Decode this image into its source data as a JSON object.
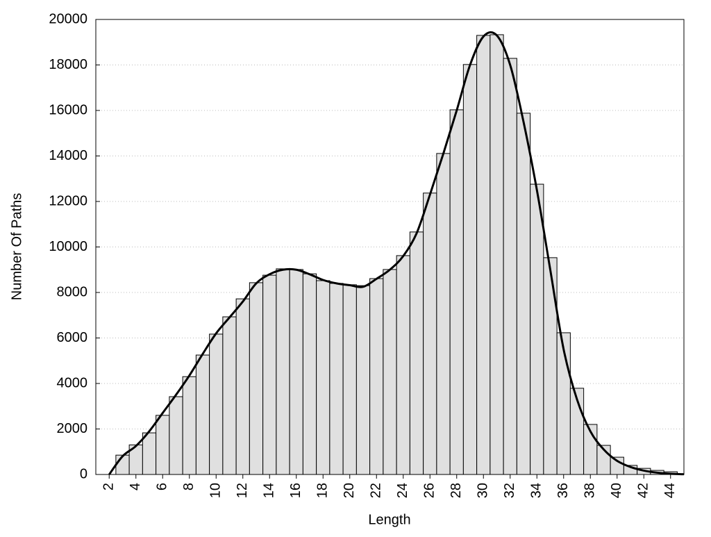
{
  "chart_data": {
    "type": "histogram",
    "x_label": "Length",
    "y_label": "Number Of Paths",
    "bins": [
      2.5,
      3.5,
      4.5,
      5.5,
      6.5,
      7.5,
      8.5,
      9.5,
      10.5,
      11.5,
      12.5,
      13.5,
      14.5,
      15.5,
      16.5,
      17.5,
      18.5,
      19.5,
      20.5,
      21.5,
      22.5,
      23.5,
      24.5,
      25.5,
      26.5,
      27.5,
      28.5,
      29.5,
      30.5,
      31.5,
      32.5,
      33.5,
      34.5,
      35.5,
      36.5,
      37.5,
      38.5,
      39.5,
      40.5,
      41.5,
      42.5,
      43.5,
      44.5
    ],
    "values": [
      850,
      1300,
      1830,
      2600,
      3420,
      4300,
      5250,
      6170,
      6930,
      7720,
      8430,
      8760,
      9040,
      9010,
      8820,
      8520,
      8400,
      8340,
      8300,
      8610,
      9010,
      9620,
      10660,
      12370,
      14110,
      16030,
      18020,
      19300,
      19330,
      18290,
      15880,
      12760,
      9530,
      6230,
      3790,
      2200,
      1280,
      760,
      400,
      270,
      180,
      120
    ],
    "bar_color": "#e0e0e0",
    "curve": {
      "color": "#000000",
      "x": [
        2,
        3,
        4,
        5,
        6,
        7,
        8,
        9,
        10,
        11,
        12,
        13,
        14,
        15,
        16,
        17,
        18,
        19,
        20,
        21,
        22,
        23,
        24,
        25,
        26,
        27,
        28,
        29,
        30,
        31,
        32,
        33,
        34,
        35,
        36,
        37,
        38,
        39,
        40,
        41,
        42,
        43,
        44,
        45
      ],
      "values": [
        0,
        800,
        1250,
        1900,
        2700,
        3500,
        4350,
        5300,
        6200,
        6900,
        7600,
        8400,
        8800,
        9000,
        9000,
        8800,
        8550,
        8400,
        8320,
        8250,
        8600,
        9000,
        9600,
        10600,
        12300,
        14100,
        16000,
        18000,
        19250,
        19300,
        18000,
        15500,
        12500,
        9000,
        5500,
        3300,
        1900,
        1100,
        600,
        330,
        170,
        80,
        30,
        10
      ]
    },
    "xlim": [
      1,
      45
    ],
    "ylim": [
      0,
      20000
    ],
    "xticks": [
      2,
      4,
      6,
      8,
      10,
      12,
      14,
      16,
      18,
      20,
      22,
      24,
      26,
      28,
      30,
      32,
      34,
      36,
      38,
      40,
      42,
      44
    ],
    "yticks": [
      0,
      2000,
      4000,
      6000,
      8000,
      10000,
      12000,
      14000,
      16000,
      18000,
      20000
    ],
    "grid": true
  }
}
